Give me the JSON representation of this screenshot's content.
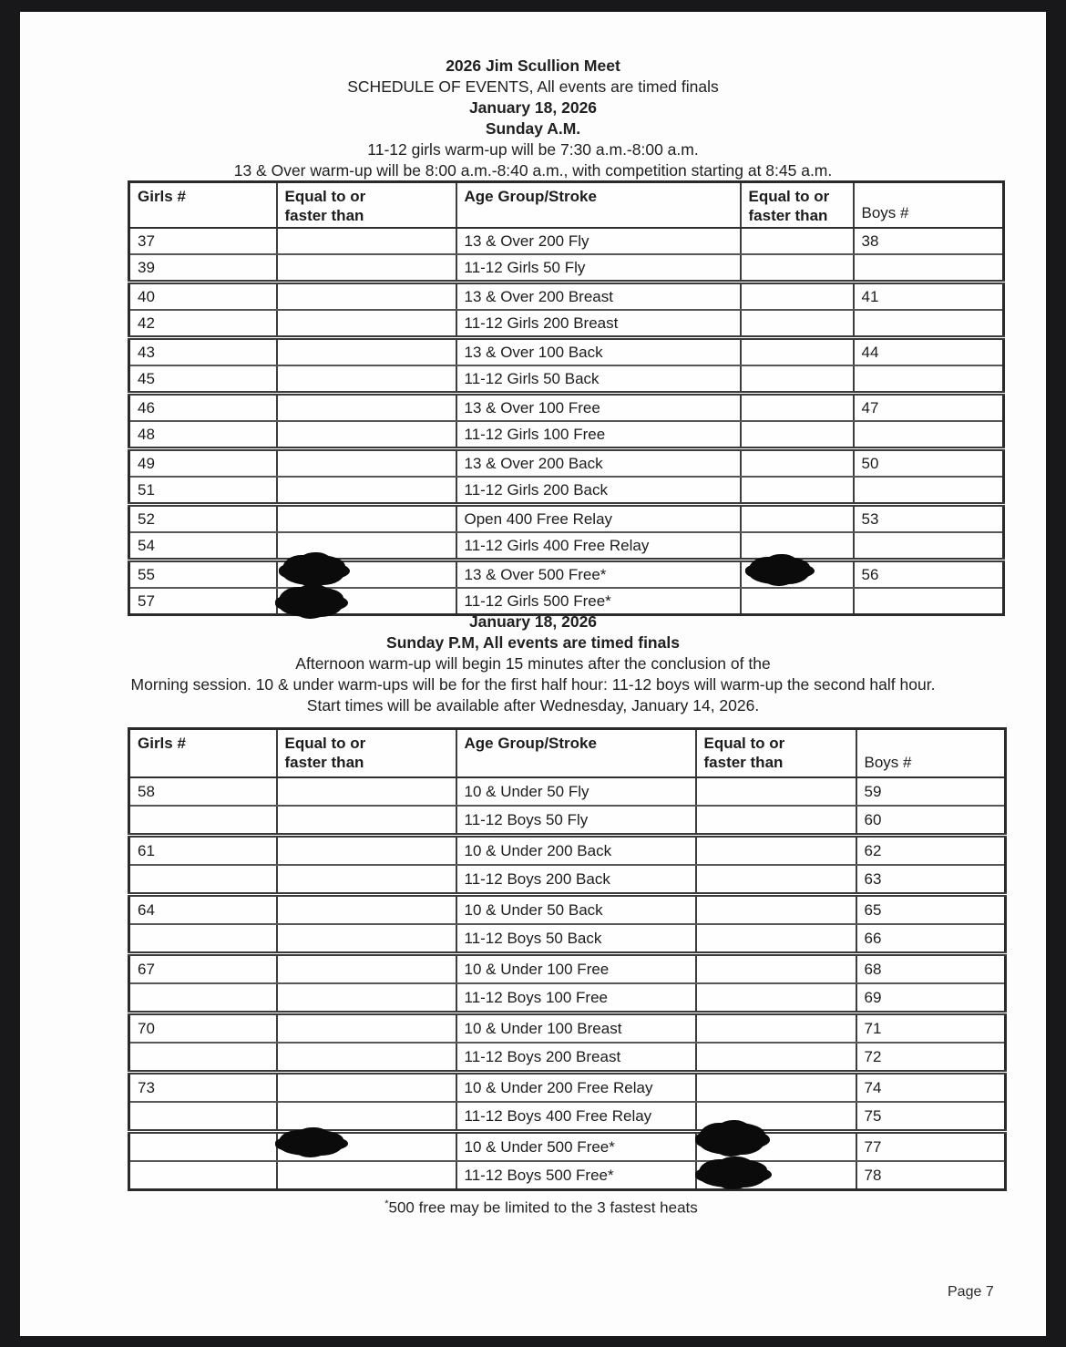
{
  "document": {
    "am_header": {
      "lines": [
        "2026 Jim Scullion Meet",
        "SCHEDULE OF EVENTS, All events are timed finals",
        "January 18, 2026",
        "Sunday A.M.",
        "11-12 girls warm-up will be 7:30 a.m.-8:00 a.m.",
        "13 & Over warm-up will be 8:00 a.m.-8:40 a.m., with competition starting at 8:45 a.m."
      ]
    },
    "pm_header": {
      "lines": [
        "January 18, 2026",
        "Sunday P.M, All events are timed finals",
        "Afternoon warm-up will begin 15 minutes after the conclusion of the",
        "Morning session. 10 & under warm-ups will be for the first half hour: 11-12 boys will warm-up the second half hour.",
        "Start times will be available after Wednesday, January 14, 2026."
      ]
    },
    "footnote": {
      "marker": "*",
      "text": "500 free may be limited to the 3 fastest heats"
    },
    "page_number": "Page 7"
  },
  "am_table": {
    "headers": {
      "girls": "Girls #",
      "std": "Equal to or\nfaster than",
      "event": "Age Group/Stroke",
      "boys": "Boys #"
    },
    "rows": [
      {
        "girls": "37",
        "girls_std": "",
        "event": "13 & Over 200 Fly",
        "boys_std": "",
        "boys": "38"
      },
      {
        "girls": "39",
        "girls_std": "",
        "event": "11-12 Girls 50 Fly",
        "boys_std": "",
        "boys": ""
      },
      {
        "girls": "40",
        "girls_std": "",
        "event": "13 & Over 200 Breast",
        "boys_std": "",
        "boys": "41"
      },
      {
        "girls": "42",
        "girls_std": "",
        "event": "11-12 Girls 200 Breast",
        "boys_std": "",
        "boys": ""
      },
      {
        "girls": "43",
        "girls_std": "",
        "event": "13 & Over 100 Back",
        "boys_std": "",
        "boys": "44"
      },
      {
        "girls": "45",
        "girls_std": "",
        "event": "11-12 Girls 50 Back",
        "boys_std": "",
        "boys": ""
      },
      {
        "girls": "46",
        "girls_std": "",
        "event": "13 & Over 100 Free",
        "boys_std": "",
        "boys": "47"
      },
      {
        "girls": "48",
        "girls_std": "",
        "event": "11-12 Girls 100 Free",
        "boys_std": "",
        "boys": ""
      },
      {
        "girls": "49",
        "girls_std": "",
        "event": "13 & Over 200 Back",
        "boys_std": "",
        "boys": "50"
      },
      {
        "girls": "51",
        "girls_std": "",
        "event": "11-12 Girls 200 Back",
        "boys_std": "",
        "boys": ""
      },
      {
        "girls": "52",
        "girls_std": "",
        "event": "Open 400 Free Relay",
        "boys_std": "",
        "boys": "53"
      },
      {
        "girls": "54",
        "girls_std": "",
        "event": "11-12 Girls 400 Free Relay",
        "boys_std": "",
        "boys": ""
      },
      {
        "girls": "55",
        "girls_std": "",
        "event": "13 & Over 500 Free*",
        "boys_std": "",
        "boys": "56",
        "girls_std_redacted": true,
        "boys_std_redacted": true
      },
      {
        "girls": "57",
        "girls_std": "",
        "event": "11-12 Girls 500 Free*",
        "boys_std": "",
        "boys": "",
        "girls_std_redacted": true
      }
    ]
  },
  "pm_table": {
    "headers": {
      "girls": "Girls #",
      "std": "Equal to or\nfaster than",
      "event": "Age Group/Stroke",
      "boys": "Boys #"
    },
    "rows": [
      {
        "girls": "58",
        "girls_std": "",
        "event": "10 & Under 50 Fly",
        "boys_std": "",
        "boys": "59"
      },
      {
        "girls": "",
        "girls_std": "",
        "event": "11-12 Boys 50 Fly",
        "boys_std": "",
        "boys": "60"
      },
      {
        "girls": "61",
        "girls_std": "",
        "event": "10 & Under 200 Back",
        "boys_std": "",
        "boys": "62"
      },
      {
        "girls": "",
        "girls_std": "",
        "event": "11-12 Boys 200 Back",
        "boys_std": "",
        "boys": "63"
      },
      {
        "girls": "64",
        "girls_std": "",
        "event": "10 & Under 50 Back",
        "boys_std": "",
        "boys": "65"
      },
      {
        "girls": "",
        "girls_std": "",
        "event": "11-12 Boys 50 Back",
        "boys_std": "",
        "boys": "66"
      },
      {
        "girls": "67",
        "girls_std": "",
        "event": "10 & Under 100 Free",
        "boys_std": "",
        "boys": "68"
      },
      {
        "girls": "",
        "girls_std": "",
        "event": "11-12 Boys 100 Free",
        "boys_std": "",
        "boys": "69"
      },
      {
        "girls": "70",
        "girls_std": "",
        "event": "10 & Under 100 Breast",
        "boys_std": "",
        "boys": "71"
      },
      {
        "girls": "",
        "girls_std": "",
        "event": "11-12 Boys 200 Breast",
        "boys_std": "",
        "boys": "72"
      },
      {
        "girls": "73",
        "girls_std": "",
        "event": "10 & Under 200 Free Relay",
        "boys_std": "",
        "boys": "74"
      },
      {
        "girls": "",
        "girls_std": "",
        "event": "11-12 Boys 400 Free Relay",
        "boys_std": "",
        "boys": "75"
      },
      {
        "girls": "",
        "girls_std": "",
        "event": "10 & Under 500 Free*",
        "boys_std": "",
        "boys": "77",
        "girls_std_redacted": true,
        "boys_std_redacted": true
      },
      {
        "girls": "",
        "girls_std": "",
        "event": "11-12 Boys 500 Free*",
        "boys_std": "",
        "boys": "78",
        "boys_std_redacted": true
      }
    ]
  }
}
